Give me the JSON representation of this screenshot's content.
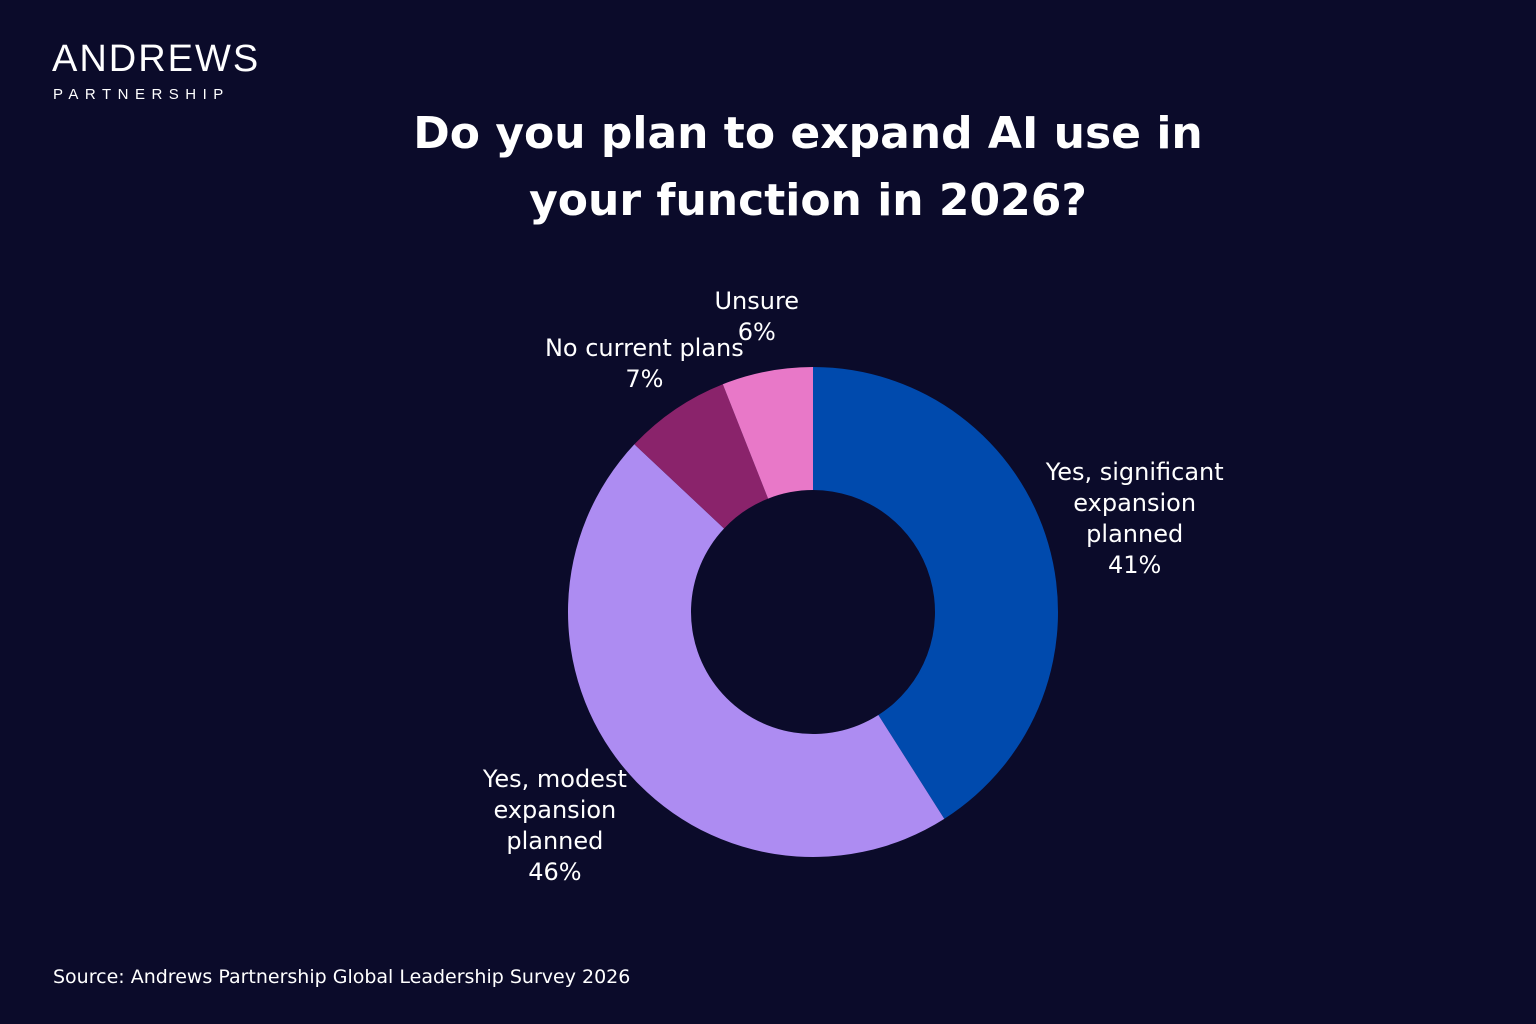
{
  "logo": {
    "name": "ANDREWS",
    "tagline": "PARTNERSHIP"
  },
  "chart_data": {
    "type": "donut",
    "title": "Do you plan to expand AI use in your function in 2026?",
    "categories": [
      "Yes, significant expansion planned",
      "Yes, modest expansion planned",
      "No current plans",
      "Unsure"
    ],
    "values": [
      41,
      46,
      7,
      6
    ],
    "value_labels": [
      "41%",
      "46%",
      "7%",
      "6%"
    ],
    "colors": [
      "#004aad",
      "#ad8cf2",
      "#8a236b",
      "#e878c8"
    ]
  },
  "source": "Source: Andrews Partnership Global Leadership Survey 2026"
}
